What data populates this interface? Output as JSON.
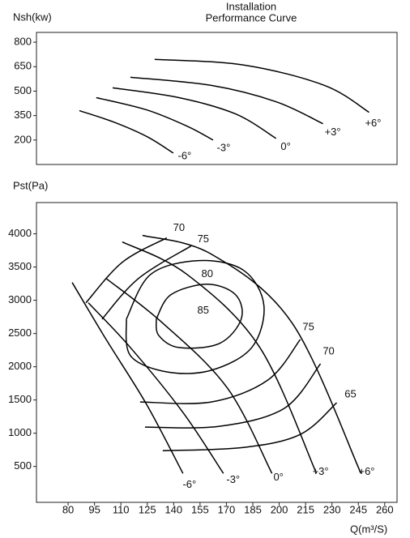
{
  "chart_data": [
    {
      "type": "line",
      "title": [
        "Installation",
        "Performance Curve"
      ],
      "y_label": "Nsh(kw)",
      "xlim": [
        62,
        267
      ],
      "ylim": [
        50,
        860
      ],
      "yticks": [
        200,
        350,
        500,
        650,
        800
      ],
      "series": [
        {
          "name": "-6°",
          "color": "#000000",
          "x": [
            86.4,
            106,
            125,
            139.8
          ],
          "values": [
            380,
            310,
            220,
            120
          ]
        },
        {
          "name": "-3°",
          "color": "#000000",
          "x": [
            96,
            124.6,
            147.6,
            162.4
          ],
          "values": [
            460,
            385,
            285,
            200
          ]
        },
        {
          "name": "0°",
          "color": "#000000",
          "x": [
            105.3,
            143,
            175.2,
            198.2
          ],
          "values": [
            520,
            460,
            360,
            210
          ]
        },
        {
          "name": "+3°",
          "color": "#000000",
          "x": [
            115.4,
            161.4,
            198.2,
            224.9
          ],
          "values": [
            585,
            535,
            435,
            300
          ]
        },
        {
          "name": "+6°",
          "color": "#000000",
          "x": [
            129.2,
            179.8,
            225.8,
            251.1
          ],
          "values": [
            695,
            660,
            535,
            370
          ]
        }
      ]
    },
    {
      "type": "line",
      "y_label": "Pst(Pa)",
      "x_label": "Q(m³/S)",
      "xlim": [
        62,
        267
      ],
      "ylim": [
        -40,
        4470
      ],
      "xticks": [
        80,
        95,
        110,
        125,
        140,
        155,
        170,
        185,
        200,
        215,
        230,
        245,
        260
      ],
      "yticks": [
        500,
        1000,
        1500,
        2000,
        2500,
        3000,
        3500,
        4000
      ],
      "series": [
        {
          "name": "-6°",
          "color": "#000000",
          "x": [
            82.3,
            101.6,
            124.6,
            145.3
          ],
          "values": [
            3267,
            2411,
            1434,
            395
          ]
        },
        {
          "name": "-3°",
          "color": "#000000",
          "x": [
            91.5,
            115.4,
            145.3,
            168.3
          ],
          "values": [
            2961,
            2289,
            1312,
            395
          ]
        },
        {
          "name": "0°",
          "color": "#000000",
          "x": [
            101.6,
            133.8,
            170.6,
            195.9
          ],
          "values": [
            3328,
            2656,
            1678,
            395
          ]
        },
        {
          "name": "+3°",
          "color": "#000000",
          "x": [
            110.8,
            147.6,
            189,
            221.2
          ],
          "values": [
            3878,
            3389,
            2289,
            395
          ]
        },
        {
          "name": "+6°",
          "color": "#000000",
          "x": [
            122.3,
            161.4,
            207.4,
            246.5
          ],
          "values": [
            3976,
            3694,
            2656,
            395
          ]
        },
        {
          "name": "70",
          "color": "#000000",
          "x": [
            90.1,
            110.8,
            136.1
          ],
          "values": [
            2961,
            3572,
            3939
          ]
        },
        {
          "name": "75",
          "color": "#000000",
          "x": [
            99.3,
            120,
            149.9
          ],
          "values": [
            2717,
            3328,
            3817
          ]
        },
        {
          "name": "75",
          "color": "#000000",
          "x": [
            120.9,
            161.4,
            193.6,
            212
          ],
          "values": [
            1470,
            1470,
            1800,
            2411
          ]
        },
        {
          "name": "70",
          "color": "#000000",
          "x": [
            123.7,
            166,
            202.8,
            223.5
          ],
          "values": [
            1092,
            1104,
            1373,
            2045
          ]
        },
        {
          "name": "65",
          "color": "#000000",
          "x": [
            133.8,
            179.8,
            212,
            232.7
          ],
          "values": [
            737,
            786,
            982,
            1458
          ]
        },
        {
          "name": "80",
          "color": "#000000",
          "x": [
            113.1,
            126.9,
            154.5,
            179.8,
            191.3,
            184.4,
            161.4,
            136.1,
            115.4,
            113.1
          ],
          "values": [
            2717,
            3389,
            3597,
            3450,
            2925,
            2289,
            1947,
            1923,
            2167,
            2717
          ]
        },
        {
          "name": "85",
          "color": "#000000",
          "x": [
            130.1,
            138.4,
            159.1,
            175.2,
            178.4,
            166,
            143,
            131.5,
            130.1
          ],
          "values": [
            2717,
            3083,
            3242,
            3083,
            2717,
            2350,
            2289,
            2472,
            2717
          ]
        }
      ]
    }
  ]
}
